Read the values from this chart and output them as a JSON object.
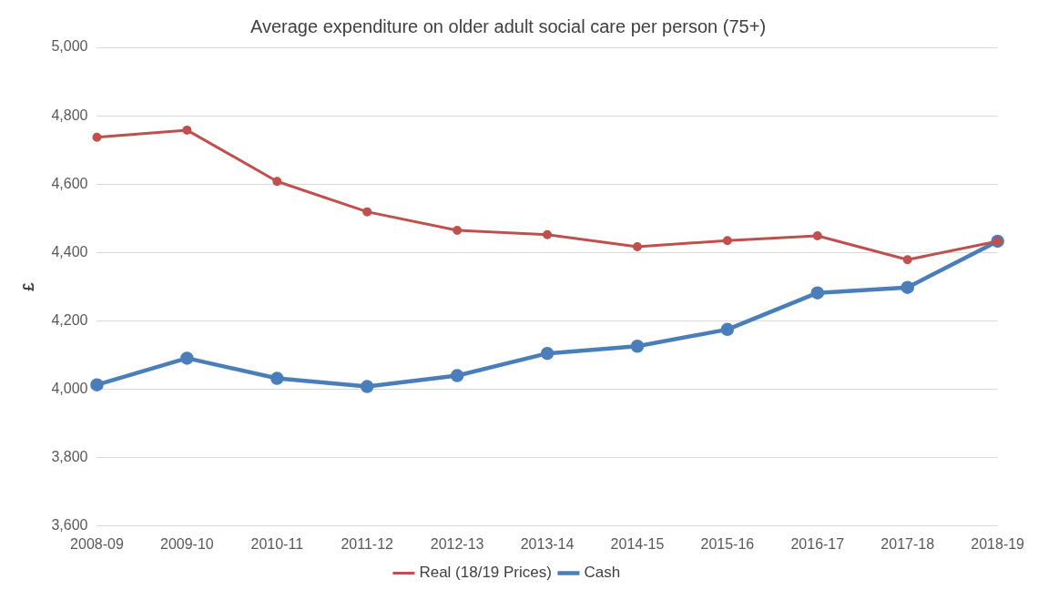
{
  "chart_data": {
    "type": "line",
    "title": "Average expenditure on older adult social care per person (75+)",
    "ylabel": "£",
    "categories": [
      "2008-09",
      "2009-10",
      "2010-11",
      "2011-12",
      "2012-13",
      "2013-14",
      "2014-15",
      "2015-16",
      "2016-17",
      "2017-18",
      "2018-19"
    ],
    "series": [
      {
        "name": "Cash",
        "color": "#4a7ebb",
        "values": [
          4013,
          4091,
          4032,
          4008,
          4040,
          4105,
          4126,
          4175,
          4282,
          4298,
          4433
        ]
      },
      {
        "name": "Real (18/19 Prices)",
        "color": "#c0504d",
        "values": [
          4737,
          4758,
          4608,
          4519,
          4465,
          4452,
          4417,
          4435,
          4449,
          4379,
          4433
        ]
      }
    ],
    "ylim": [
      3600,
      5000
    ],
    "yticks": [
      {
        "value": 3600,
        "label": "3,600"
      },
      {
        "value": 3800,
        "label": "3,800"
      },
      {
        "value": 4000,
        "label": "4,000"
      },
      {
        "value": 4200,
        "label": "4,200"
      },
      {
        "value": 4400,
        "label": "4,400"
      },
      {
        "value": 4600,
        "label": "4,600"
      },
      {
        "value": 4800,
        "label": "4,800"
      },
      {
        "value": 5000,
        "label": "5,000"
      }
    ],
    "grid": "y",
    "legend": "bottom",
    "marker": "circle",
    "line_style": "solid"
  }
}
